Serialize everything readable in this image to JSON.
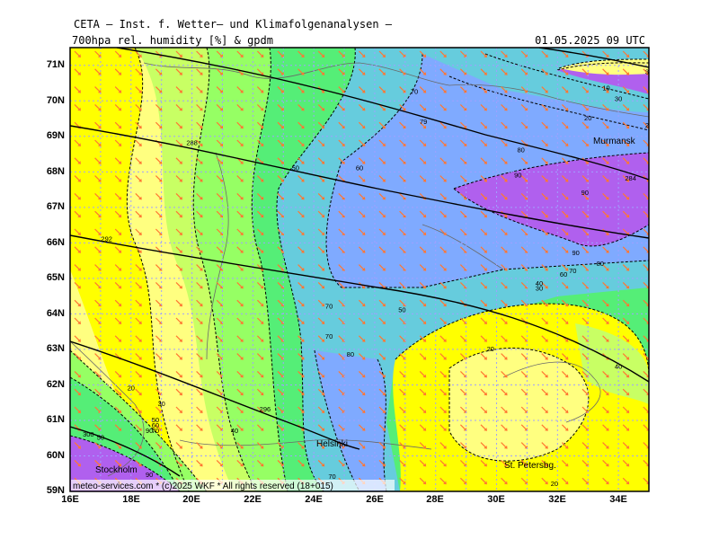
{
  "header": {
    "line1": "CETA – Inst. f. Wetter– und Klimafolgenanalysen –",
    "param": "700hpa rel. humidity [%] & gpdm",
    "datetime": "01.05.2025 09 UTC"
  },
  "footer": {
    "copyright": "meteo-services.com * (c)2025 WKF * All rights reserved (18+015)"
  },
  "axes": {
    "lat_labels": [
      "71N",
      "70N",
      "69N",
      "68N",
      "67N",
      "66N",
      "65N",
      "64N",
      "63N",
      "62N",
      "61N",
      "60N",
      "59N"
    ],
    "lon_labels": [
      "16E",
      "18E",
      "20E",
      "22E",
      "24E",
      "26E",
      "28E",
      "30E",
      "32E",
      "34E"
    ]
  },
  "places": [
    "Murmansk",
    "Helsinki",
    "Stockholm",
    "St. Petersbg."
  ],
  "humidity_levels": [
    10,
    20,
    30,
    40,
    50,
    60,
    70,
    80,
    90
  ],
  "geopotential_levels": [
    284,
    288,
    292,
    296
  ],
  "contour_labels": [
    {
      "text": "70",
      "lon": 27.3,
      "lat": 70.25
    },
    {
      "text": "79",
      "lon": 27.6,
      "lat": 69.4
    },
    {
      "text": "80",
      "lon": 30.8,
      "lat": 68.6
    },
    {
      "text": "90",
      "lon": 30.7,
      "lat": 67.9
    },
    {
      "text": "90",
      "lon": 32.9,
      "lat": 67.4
    },
    {
      "text": "284",
      "lon": 34.4,
      "lat": 67.8
    },
    {
      "text": "10",
      "lon": 33.6,
      "lat": 70.35
    },
    {
      "text": "30",
      "lon": 34.0,
      "lat": 70.05
    },
    {
      "text": "20",
      "lon": 33.0,
      "lat": 69.5
    },
    {
      "text": "26",
      "lon": 35.0,
      "lat": 69.3
    },
    {
      "text": "7",
      "lon": 35.1,
      "lat": 69.0
    },
    {
      "text": "32",
      "lon": 35.0,
      "lat": 70.8
    },
    {
      "text": "288",
      "lon": 20.0,
      "lat": 68.8
    },
    {
      "text": "50",
      "lon": 23.4,
      "lat": 68.1
    },
    {
      "text": "60",
      "lon": 25.5,
      "lat": 68.1
    },
    {
      "text": "292",
      "lon": 17.2,
      "lat": 66.1
    },
    {
      "text": "90",
      "lon": 32.6,
      "lat": 65.7
    },
    {
      "text": "80",
      "lon": 33.4,
      "lat": 65.4
    },
    {
      "text": "70",
      "lon": 32.5,
      "lat": 65.2
    },
    {
      "text": "60",
      "lon": 32.2,
      "lat": 65.1
    },
    {
      "text": "40",
      "lon": 31.4,
      "lat": 64.85
    },
    {
      "text": "30",
      "lon": 31.4,
      "lat": 64.7
    },
    {
      "text": "70",
      "lon": 24.5,
      "lat": 64.2
    },
    {
      "text": "50",
      "lon": 26.9,
      "lat": 64.1
    },
    {
      "text": "70",
      "lon": 24.5,
      "lat": 63.35
    },
    {
      "text": "80",
      "lon": 25.2,
      "lat": 62.85
    },
    {
      "text": "20",
      "lon": 29.8,
      "lat": 63.0
    },
    {
      "text": "40",
      "lon": 34.0,
      "lat": 62.5
    },
    {
      "text": "20",
      "lon": 18.0,
      "lat": 61.9
    },
    {
      "text": "30",
      "lon": 19.0,
      "lat": 61.45
    },
    {
      "text": "50",
      "lon": 18.8,
      "lat": 61.0
    },
    {
      "text": "60",
      "lon": 18.8,
      "lat": 60.85
    },
    {
      "text": "70",
      "lon": 18.8,
      "lat": 60.7
    },
    {
      "text": "296",
      "lon": 22.4,
      "lat": 61.3
    },
    {
      "text": "40",
      "lon": 21.4,
      "lat": 60.7
    },
    {
      "text": "300",
      "lon": 16.6,
      "lat": 60.6
    },
    {
      "text": "50",
      "lon": 17.0,
      "lat": 60.5
    },
    {
      "text": "90",
      "lon": 18.6,
      "lat": 60.7
    },
    {
      "text": "90",
      "lon": 18.6,
      "lat": 59.45
    },
    {
      "text": "70",
      "lon": 24.6,
      "lat": 59.4
    },
    {
      "text": "20",
      "lon": 31.9,
      "lat": 59.2
    }
  ],
  "colors": {
    "rh_scale": [
      "#ffff00",
      "#ffff80",
      "#c8ff64",
      "#96ff64",
      "#55ee77",
      "#44dd99",
      "#66ccdd",
      "#7faaff",
      "#7a84ee",
      "#b060ee"
    ],
    "arrow": "#ff7733",
    "grid": "#a0a0ff",
    "contour": "#000000"
  }
}
